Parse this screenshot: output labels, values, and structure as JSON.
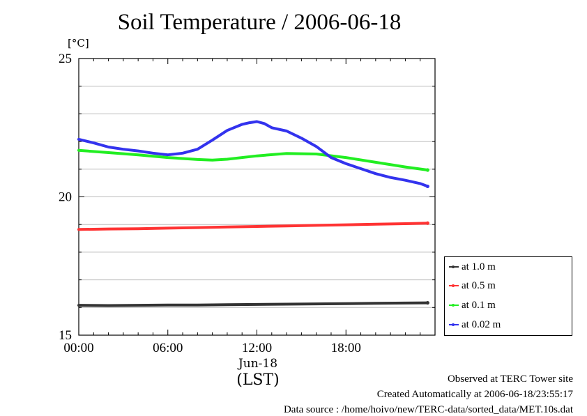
{
  "chart_data": {
    "type": "line",
    "title": "Soil Temperature / 2006-06-18",
    "ylabel": "[°C]",
    "xlabel": "(LST)",
    "date_label": "Jun-18",
    "ylim": [
      15,
      25
    ],
    "xlim": [
      0,
      24
    ],
    "y_ticks": [
      "15",
      "20",
      "25"
    ],
    "x_ticks": [
      {
        "h": 0,
        "label": "00:00"
      },
      {
        "h": 6,
        "label": "06:00"
      },
      {
        "h": 12,
        "label": "12:00"
      },
      {
        "h": 18,
        "label": "18:00"
      }
    ],
    "grid": true,
    "legend_position": "right",
    "series": [
      {
        "name": "at 1.0 m",
        "color": "#333333",
        "x": [
          0,
          2,
          4,
          6,
          8,
          10,
          12,
          14,
          16,
          18,
          20,
          22,
          23.5
        ],
        "y": [
          16.08,
          16.07,
          16.08,
          16.09,
          16.09,
          16.1,
          16.11,
          16.12,
          16.13,
          16.14,
          16.15,
          16.16,
          16.17
        ]
      },
      {
        "name": "at 0.5 m",
        "color": "#ff3333",
        "x": [
          0,
          2,
          4,
          6,
          8,
          10,
          12,
          14,
          16,
          18,
          20,
          22,
          23.5
        ],
        "y": [
          18.82,
          18.84,
          18.85,
          18.87,
          18.89,
          18.91,
          18.93,
          18.95,
          18.97,
          18.99,
          19.01,
          19.03,
          19.05
        ]
      },
      {
        "name": "at 0.1 m",
        "color": "#22ee22",
        "x": [
          0,
          2,
          4,
          6,
          8,
          9,
          10,
          12,
          14,
          16,
          18,
          20,
          22,
          23.5
        ],
        "y": [
          21.68,
          21.6,
          21.52,
          21.42,
          21.35,
          21.33,
          21.36,
          21.48,
          21.57,
          21.55,
          21.42,
          21.25,
          21.08,
          20.97
        ]
      },
      {
        "name": "at 0.02 m",
        "color": "#3333ee",
        "x": [
          0,
          1,
          2,
          3,
          4,
          5,
          6,
          7,
          8,
          9,
          10,
          11,
          11.5,
          12,
          12.5,
          13,
          14,
          15,
          16,
          17,
          18,
          19,
          20,
          21,
          22,
          23,
          23.5
        ],
        "y": [
          22.08,
          21.95,
          21.8,
          21.72,
          21.66,
          21.58,
          21.52,
          21.58,
          21.72,
          22.05,
          22.4,
          22.62,
          22.68,
          22.72,
          22.65,
          22.5,
          22.38,
          22.12,
          21.82,
          21.42,
          21.2,
          21.02,
          20.84,
          20.7,
          20.6,
          20.48,
          20.38
        ]
      }
    ]
  },
  "footer": {
    "line1": "Observed at TERC Tower site",
    "line2": "Created Automatically at 2006-06-18/23:55:17",
    "line3": "Data source : /home/hoivo/new/TERC-data/sorted_data/MET.10s.dat"
  }
}
